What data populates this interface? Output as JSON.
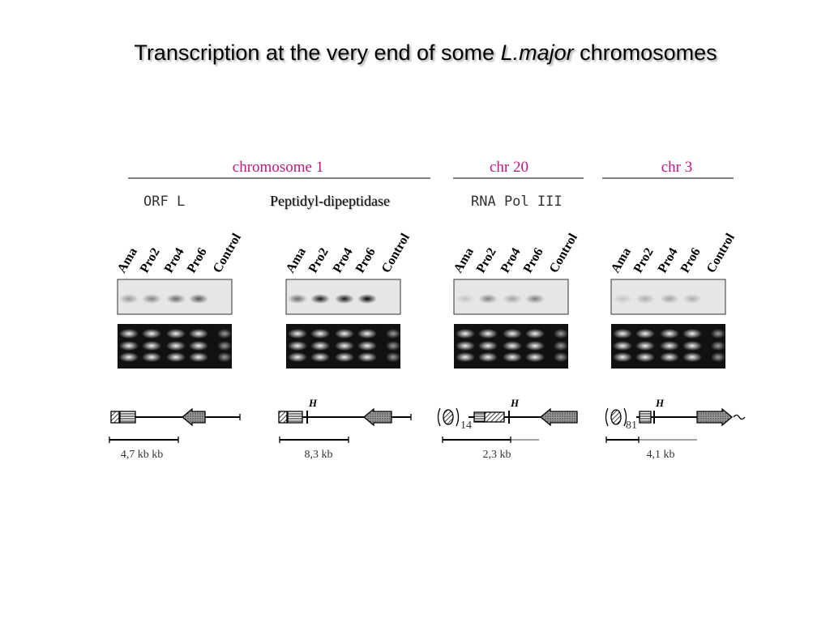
{
  "title": {
    "before": "Transcription at the very end of some",
    "species": "L.major",
    "after": "chromosomes"
  },
  "groups": [
    {
      "label": "chromosome 1"
    },
    {
      "label": "chr 20"
    },
    {
      "label": "chr 3"
    }
  ],
  "panels": [
    {
      "gene": "ORF L",
      "lanes": [
        "Ama",
        "Pro2",
        "Pro4",
        "Pro6",
        "Control"
      ],
      "scale": "4,7 kb kb"
    },
    {
      "gene": "Peptidyl-dipeptidase",
      "lanes": [
        "Ama",
        "Pro2",
        "Pro4",
        "Pro6",
        "Control"
      ],
      "site": "H",
      "scale": "8,3 kb"
    },
    {
      "gene": "RNA Pol III",
      "lanes": [
        "Ama",
        "Pro2",
        "Pro4",
        "Pro6",
        "Control"
      ],
      "site": "H",
      "repeat": "14",
      "scale": "2,3 kb"
    },
    {
      "lanes": [
        "Ama",
        "Pro2",
        "Pro4",
        "Pro6",
        "Control"
      ],
      "site": "H",
      "repeat": "81",
      "scale": "4,1 kb"
    }
  ]
}
